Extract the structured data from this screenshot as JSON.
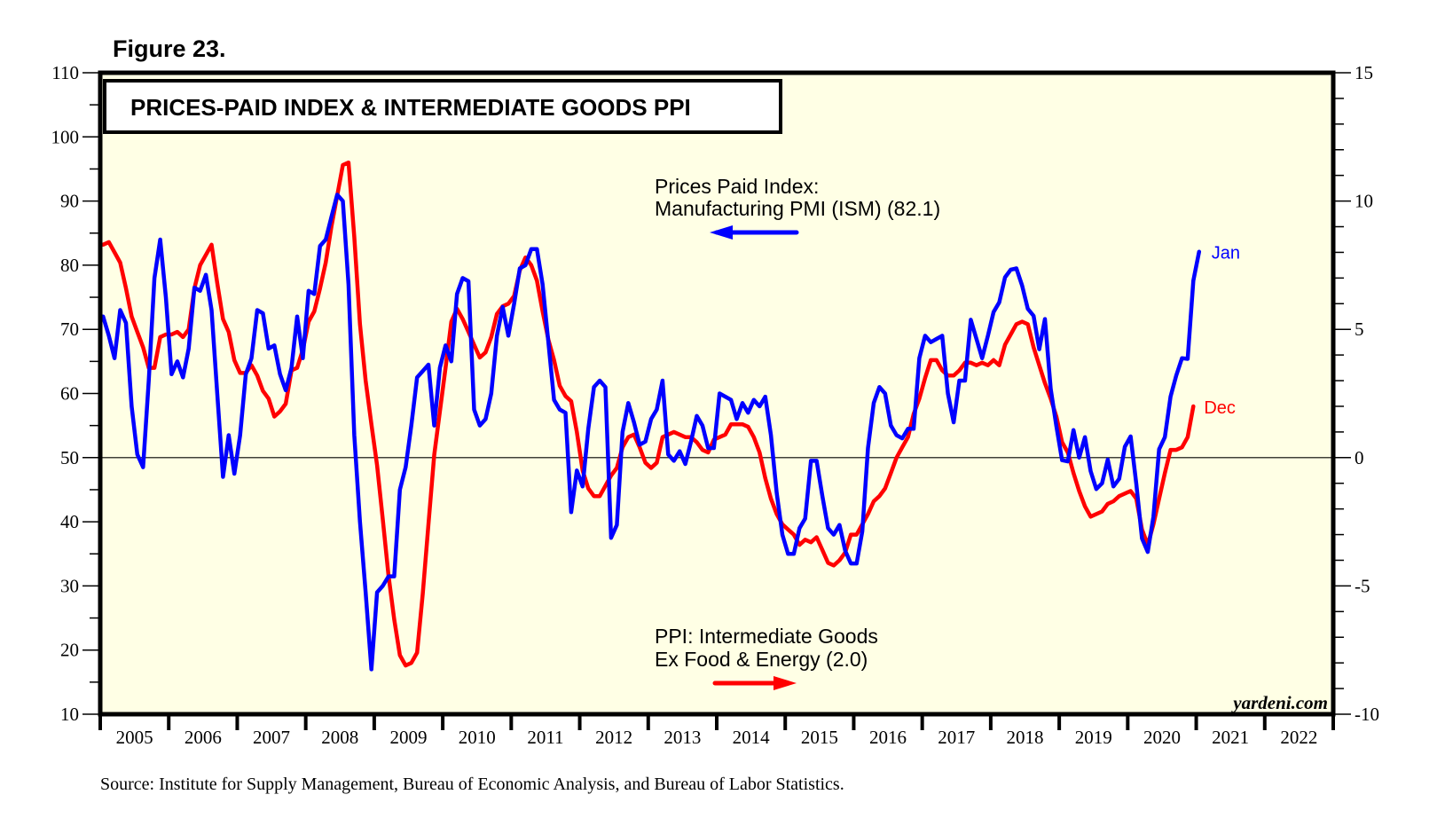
{
  "figure_label": "Figure 23.",
  "source": "Source: Institute for Supply Management, Bureau of Economic Analysis, and Bureau of Labor Statistics.",
  "watermark": "yardeni.com",
  "colors": {
    "plot_background": "#ffffe5",
    "prices_paid": "#0000ff",
    "ppi": "#ff0000",
    "frame": "#000000"
  },
  "chart_data": {
    "type": "line",
    "title": "PRICES-PAID INDEX & INTERMEDIATE GOODS PPI",
    "xlabel": "",
    "x_tick_labels": [
      "2005",
      "2006",
      "2007",
      "2008",
      "2009",
      "2010",
      "2011",
      "2012",
      "2013",
      "2014",
      "2015",
      "2016",
      "2017",
      "2018",
      "2019",
      "2020",
      "2021",
      "2022"
    ],
    "x_range": [
      "2005-01",
      "2022-12"
    ],
    "y_left": {
      "label": "",
      "range": [
        10,
        110
      ],
      "ticks": [
        10,
        20,
        30,
        40,
        50,
        60,
        70,
        80,
        90,
        100,
        110
      ]
    },
    "y_right": {
      "label": "",
      "range": [
        -10,
        15
      ],
      "ticks": [
        -10,
        -5,
        0,
        5,
        10,
        15
      ]
    },
    "reference_line": {
      "axis": "left",
      "value": 50
    },
    "annotations": [
      {
        "id": "pp-label",
        "lines": [
          "Prices Paid Index:",
          "Manufacturing PMI (ISM) (82.1)"
        ],
        "arrow": "left"
      },
      {
        "id": "ppi-label",
        "lines": [
          "PPI: Intermediate Goods",
          "Ex Food & Energy (2.0)"
        ],
        "arrow": "right"
      }
    ],
    "series": [
      {
        "name": "Prices Paid Index: Manufacturing PMI (ISM)",
        "axis": "left",
        "color": "#0000ff",
        "start": "2005-01",
        "frequency": "monthly",
        "end_label": "Jan",
        "latest": 82.1,
        "values": [
          72,
          69,
          65.5,
          73,
          71,
          58,
          50.5,
          48.5,
          62,
          78,
          84,
          75,
          63,
          65,
          62.5,
          67,
          76.5,
          76,
          78.5,
          73,
          60,
          47,
          53.5,
          47.5,
          53.5,
          63,
          65.5,
          73,
          72.5,
          67,
          67.5,
          63,
          60.5,
          64,
          72,
          65.5,
          76,
          75.5,
          83,
          84,
          87.5,
          91,
          90,
          77,
          53.5,
          40,
          29,
          17,
          29,
          30,
          31.5,
          31.5,
          45,
          48.5,
          55,
          62.5,
          63.5,
          64.5,
          55,
          64,
          67.5,
          65,
          75.5,
          78,
          77.5,
          57.5,
          55,
          56,
          60,
          69,
          73.5,
          69,
          74,
          79.5,
          80,
          82.5,
          82.5,
          77,
          68,
          59,
          57.5,
          57,
          41.5,
          48,
          45.5,
          54.5,
          61,
          62,
          61,
          37.5,
          39.5,
          54,
          58.5,
          55.5,
          52,
          52.5,
          56,
          57.5,
          62,
          50.5,
          49.5,
          51,
          49,
          52.5,
          56.5,
          55,
          51.5,
          51.5,
          60,
          59.5,
          59,
          56,
          58.5,
          57,
          59,
          58,
          59.5,
          53.5,
          44.5,
          38,
          35,
          35,
          39,
          40.5,
          49.5,
          49.5,
          44,
          39,
          38,
          39.5,
          35.5,
          33.5,
          33.5,
          38.5,
          51.5,
          58.5,
          61,
          60,
          55,
          53.5,
          53,
          54.5,
          54.5,
          65.5,
          69,
          68,
          68.5,
          69,
          60,
          55.5,
          62,
          62,
          71.5,
          68.5,
          65.5,
          69,
          72.7,
          74.2,
          78.1,
          79.3,
          79.5,
          76.8,
          73.2,
          72.1,
          66.9,
          71.6,
          60.7,
          54.9,
          49.6,
          49.4,
          54.3,
          50,
          53.2,
          47.9,
          45.1,
          46,
          49.7,
          45.5,
          46.7,
          51.7,
          53.3,
          45.9,
          37.4,
          35.3,
          40.8,
          51.3,
          53.2,
          59.5,
          62.8,
          65.5,
          65.4,
          77.6,
          82.1
        ]
      },
      {
        "name": "PPI: Intermediate Goods Ex Food & Energy (yoy %)",
        "axis": "right",
        "color": "#ff0000",
        "start": "2005-01",
        "frequency": "monthly",
        "end_label": "Dec",
        "latest": 2.0,
        "values": [
          8.3,
          8.4,
          8.0,
          7.6,
          6.6,
          5.5,
          4.9,
          4.3,
          3.5,
          3.5,
          4.7,
          4.8,
          4.8,
          4.9,
          4.7,
          5.0,
          6.6,
          7.5,
          7.9,
          8.3,
          6.8,
          5.4,
          4.9,
          3.8,
          3.3,
          3.3,
          3.6,
          3.2,
          2.6,
          2.3,
          1.6,
          1.8,
          2.1,
          3.4,
          3.5,
          4.2,
          5.3,
          5.7,
          6.6,
          7.6,
          9.0,
          10.2,
          11.4,
          11.5,
          8.6,
          5.2,
          3.0,
          1.3,
          -0.3,
          -2.4,
          -4.6,
          -6.3,
          -7.7,
          -8.1,
          -8.0,
          -7.6,
          -5.3,
          -2.6,
          0.1,
          1.8,
          3.5,
          5.3,
          5.8,
          5.4,
          4.9,
          4.4,
          3.9,
          4.1,
          4.7,
          5.6,
          5.9,
          6.0,
          6.3,
          7.3,
          7.8,
          7.5,
          6.9,
          5.7,
          4.6,
          3.8,
          2.8,
          2.4,
          2.2,
          1.0,
          -0.5,
          -1.2,
          -1.5,
          -1.5,
          -1.1,
          -0.7,
          -0.4,
          0.4,
          0.8,
          0.9,
          0.4,
          -0.2,
          -0.4,
          -0.2,
          0.8,
          0.9,
          1.0,
          0.9,
          0.8,
          0.8,
          0.6,
          0.3,
          0.2,
          0.7,
          0.8,
          0.9,
          1.3,
          1.3,
          1.3,
          1.2,
          0.8,
          0.2,
          -0.8,
          -1.6,
          -2.2,
          -2.6,
          -2.8,
          -3.0,
          -3.4,
          -3.2,
          -3.3,
          -3.1,
          -3.6,
          -4.1,
          -4.2,
          -4.0,
          -3.7,
          -3.0,
          -3.0,
          -2.6,
          -2.2,
          -1.7,
          -1.5,
          -1.2,
          -0.6,
          0.0,
          0.4,
          0.8,
          1.7,
          2.3,
          3.1,
          3.8,
          3.8,
          3.4,
          3.2,
          3.2,
          3.4,
          3.7,
          3.7,
          3.6,
          3.7,
          3.6,
          3.8,
          3.6,
          4.4,
          4.8,
          5.2,
          5.3,
          5.2,
          4.3,
          3.6,
          2.9,
          2.3,
          1.6,
          0.6,
          0.2,
          -0.6,
          -1.3,
          -1.9,
          -2.3,
          -2.2,
          -2.1,
          -1.8,
          -1.7,
          -1.5,
          -1.4,
          -1.3,
          -1.6,
          -2.8,
          -3.4,
          -2.6,
          -1.6,
          -0.6,
          0.3,
          0.3,
          0.4,
          0.8,
          2.0
        ]
      }
    ]
  }
}
